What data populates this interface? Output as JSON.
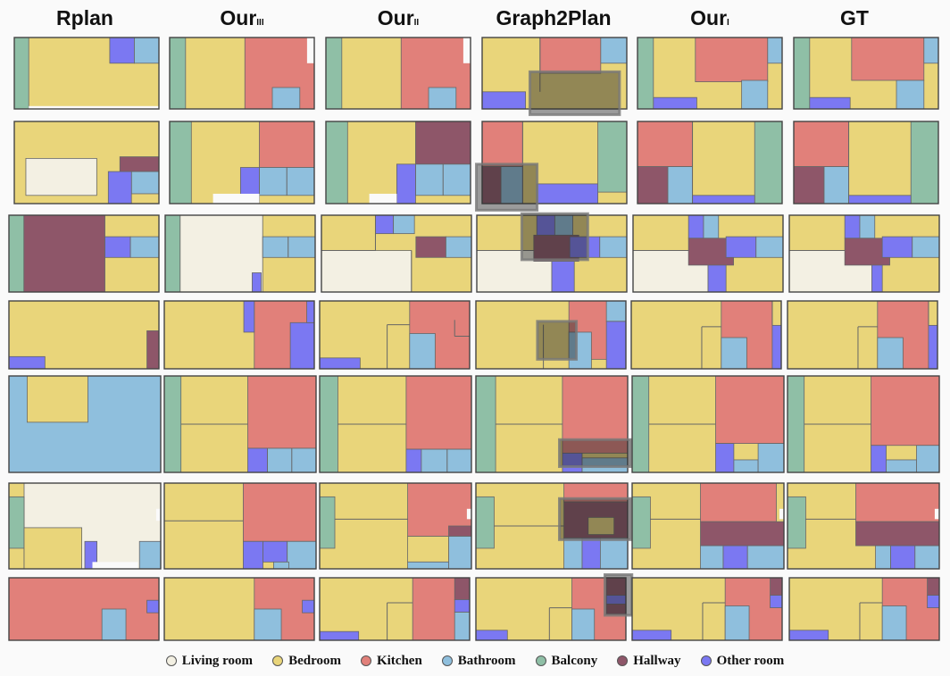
{
  "columns": [
    {
      "label": "Rplan",
      "sub": ""
    },
    {
      "label": "Our",
      "sub": "III"
    },
    {
      "label": "Our",
      "sub": "II"
    },
    {
      "label": "Graph2Plan",
      "sub": ""
    },
    {
      "label": "Our",
      "sub": "I"
    },
    {
      "label": "GT",
      "sub": ""
    }
  ],
  "colors": {
    "living": "#f3f0e3",
    "bedroom": "#e9d57a",
    "kitchen": "#e1807a",
    "bathroom": "#8fbfdd",
    "balcony": "#8fbfa6",
    "hallway": "#8e5669",
    "other": "#7b78f2",
    "outline": "#444444"
  },
  "legend": [
    {
      "key": "living",
      "label": "Living room"
    },
    {
      "key": "bedroom",
      "label": "Bedroom"
    },
    {
      "key": "kitchen",
      "label": "Kitchen"
    },
    {
      "key": "bathroom",
      "label": "Bathroom"
    },
    {
      "key": "balcony",
      "label": "Balcony"
    },
    {
      "key": "hallway",
      "label": "Hallway"
    },
    {
      "key": "other",
      "label": "Other room"
    }
  ]
}
